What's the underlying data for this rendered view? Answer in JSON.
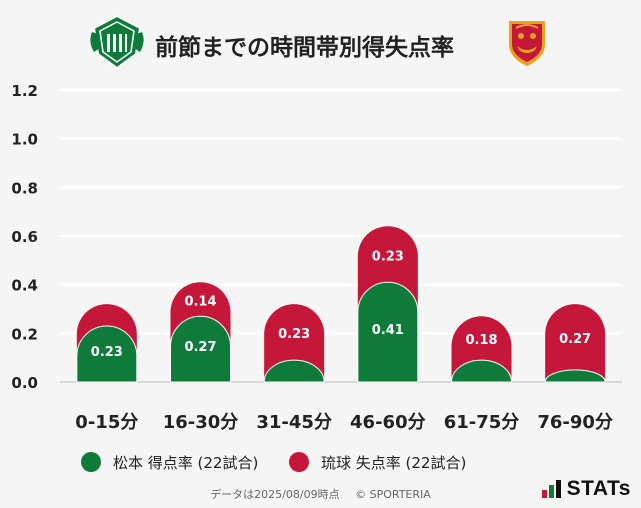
{
  "title": "前節までの時間帯別得失点率",
  "colors": {
    "matsumoto": "#0e7b3a",
    "ryukyu": "#c4173a",
    "grid": "#ffffff",
    "label_text": "#ffffff"
  },
  "crests": {
    "left": "matsumoto-yamaga-crest-icon",
    "right": "fc-ryukyu-crest-icon"
  },
  "legend": {
    "matsumoto": "松本 得点率 (22試合)",
    "ryukyu": "琉球 失点率 (22試合)"
  },
  "footer": {
    "data_date": "データは2025/08/09時点",
    "copyright": "© SPORTERIA"
  },
  "logo": {
    "text": "STATs"
  },
  "chart_data": {
    "type": "bar",
    "stacked": true,
    "categories": [
      "0-15分",
      "16-30分",
      "31-45分",
      "46-60分",
      "61-75分",
      "76-90分"
    ],
    "series": [
      {
        "name": "松本 得点率 (22試合)",
        "values": [
          0.23,
          0.27,
          0.09,
          0.41,
          0.09,
          0.05
        ],
        "labels": [
          "0.23",
          "0.27",
          "",
          "0.41",
          "",
          ""
        ]
      },
      {
        "name": "琉球 失点率 (22試合)",
        "values": [
          0.09,
          0.14,
          0.23,
          0.23,
          0.18,
          0.27
        ],
        "labels": [
          "",
          "0.14",
          "0.23",
          "0.23",
          "0.18",
          "0.27"
        ]
      }
    ],
    "yticks": [
      "0.0",
      "0.2",
      "0.4",
      "0.6",
      "0.8",
      "1.0",
      "1.2"
    ],
    "ylim": [
      0,
      1.2
    ],
    "grid": true
  }
}
